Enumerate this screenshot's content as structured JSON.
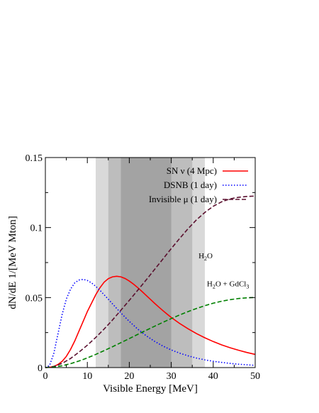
{
  "chart_data": {
    "type": "line",
    "xlabel": "Visible Energy [MeV]",
    "ylabel": "dN/dE  1/[MeV Mton]",
    "xlim": [
      0,
      50
    ],
    "ylim": [
      0,
      0.15
    ],
    "x_ticks": [
      0,
      10,
      20,
      30,
      40,
      50
    ],
    "y_ticks": [
      0,
      0.05,
      0.1,
      0.15
    ],
    "x_tick_labels": [
      "0",
      "10",
      "20",
      "30",
      "40",
      "50"
    ],
    "y_tick_labels": [
      "0",
      "0.05",
      "0.1",
      "0.15"
    ],
    "grid": false,
    "legend_position": "top-right",
    "shaded_bands": [
      {
        "from": 12,
        "to": 38,
        "shade": "#d9d9d9"
      },
      {
        "from": 15,
        "to": 35,
        "shade": "#bdbdbd"
      },
      {
        "from": 18,
        "to": 30,
        "shade": "#a3a3a3"
      }
    ],
    "series": [
      {
        "name": "SN ν (4 Mpc)",
        "color": "#ff0000",
        "style": "solid",
        "x": [
          0,
          1,
          2,
          3,
          4,
          5,
          6,
          7,
          8,
          9,
          10,
          11,
          12,
          13,
          14,
          15,
          16,
          17,
          18,
          19,
          20,
          21,
          22,
          23,
          24,
          25,
          26,
          27,
          28,
          29,
          30,
          32,
          34,
          36,
          38,
          40,
          42,
          44,
          46,
          48,
          50
        ],
        "y": [
          0,
          0.0002,
          0.0008,
          0.0022,
          0.0045,
          0.008,
          0.013,
          0.019,
          0.026,
          0.033,
          0.04,
          0.046,
          0.052,
          0.057,
          0.061,
          0.0635,
          0.0648,
          0.0652,
          0.0648,
          0.0636,
          0.0618,
          0.0596,
          0.0571,
          0.0544,
          0.0516,
          0.0488,
          0.046,
          0.0433,
          0.0407,
          0.0382,
          0.0358,
          0.0315,
          0.0277,
          0.0243,
          0.0213,
          0.0186,
          0.0162,
          0.0142,
          0.0124,
          0.0108,
          0.0094
        ]
      },
      {
        "name": "DSNB  (1 day)",
        "color": "#0000ff",
        "style": "dotted",
        "x": [
          0,
          1,
          2,
          3,
          4,
          5,
          6,
          7,
          8,
          9,
          10,
          11,
          12,
          13,
          14,
          15,
          16,
          17,
          18,
          19,
          20,
          22,
          24,
          26,
          28,
          30,
          32,
          34,
          36,
          38,
          40,
          42,
          44,
          46,
          48,
          50
        ],
        "y": [
          0,
          0.0015,
          0.01,
          0.024,
          0.038,
          0.049,
          0.056,
          0.0605,
          0.0625,
          0.063,
          0.0622,
          0.0605,
          0.058,
          0.0552,
          0.052,
          0.0488,
          0.0455,
          0.0422,
          0.039,
          0.036,
          0.033,
          0.0275,
          0.0228,
          0.0188,
          0.0154,
          0.0126,
          0.0103,
          0.0084,
          0.0068,
          0.0055,
          0.0045,
          0.0037,
          0.003,
          0.0024,
          0.002,
          0.0016
        ]
      },
      {
        "name": "Invisible μ (1 day)",
        "color": "#5a0f2e",
        "style": "dashed",
        "x": [
          0,
          2,
          4,
          6,
          8,
          10,
          12,
          14,
          16,
          18,
          20,
          22,
          24,
          26,
          28,
          30,
          32,
          34,
          36,
          38,
          40,
          42,
          44,
          46,
          48,
          50
        ],
        "y": [
          0,
          0.0008,
          0.003,
          0.0065,
          0.011,
          0.016,
          0.0215,
          0.0275,
          0.034,
          0.041,
          0.048,
          0.0552,
          0.0625,
          0.07,
          0.0775,
          0.085,
          0.0922,
          0.0992,
          0.1055,
          0.1108,
          0.1152,
          0.1184,
          0.1205,
          0.1216,
          0.1222,
          0.1225
        ]
      },
      {
        "name": "",
        "color": "#008000",
        "style": "dashed",
        "x": [
          0,
          2,
          4,
          6,
          8,
          10,
          12,
          14,
          16,
          18,
          20,
          22,
          24,
          26,
          28,
          30,
          32,
          34,
          36,
          38,
          40,
          42,
          44,
          46,
          48,
          50
        ],
        "y": [
          0,
          0.0004,
          0.0013,
          0.0028,
          0.0047,
          0.0069,
          0.0094,
          0.0121,
          0.0149,
          0.0178,
          0.0207,
          0.0237,
          0.0266,
          0.0295,
          0.0323,
          0.035,
          0.0376,
          0.04,
          0.0422,
          0.0442,
          0.046,
          0.0474,
          0.0485,
          0.0493,
          0.0498,
          0.0501
        ]
      }
    ],
    "annotations": [
      {
        "text": "H",
        "sub": "2",
        "tail": "O",
        "at_x": 36.5,
        "at_y": 0.078
      },
      {
        "text": "H",
        "sub": "2",
        "tail": "O + GdCl",
        "sub2": "3",
        "at_x": 38.5,
        "at_y": 0.058
      }
    ]
  }
}
